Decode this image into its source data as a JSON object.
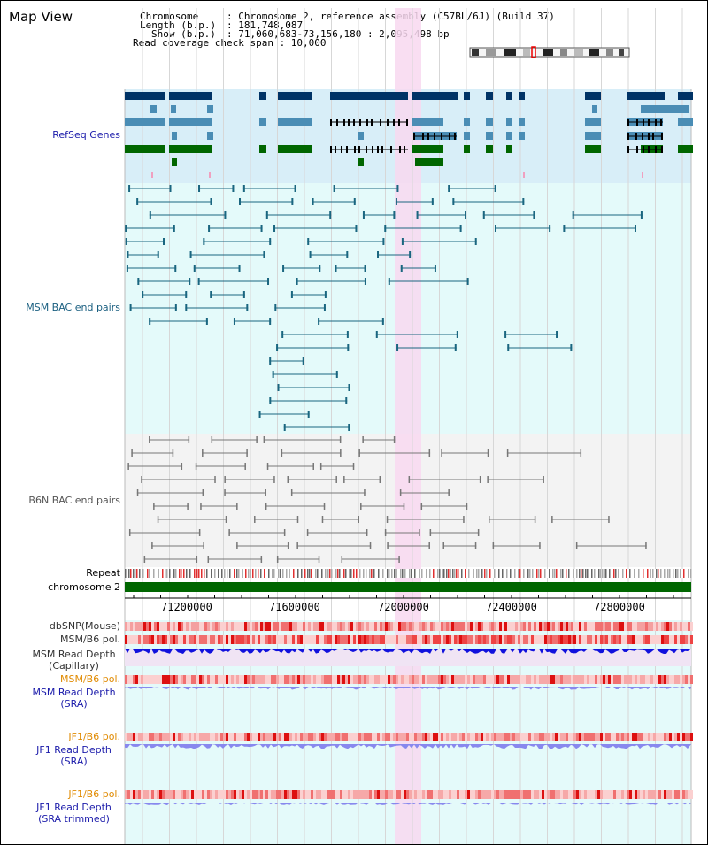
{
  "page": {
    "title": "Map View"
  },
  "header": {
    "chromosome_key": "Chromosome",
    "chromosome_val": ": Chromosome 2, reference assembly (C57BL/6J) (Build 37)",
    "length_key": "Length (b.p.)",
    "length_val": ": 181,748,087",
    "show_key": "Show (b.p.)",
    "show_val": ": 71,060,683-73,156,180 : 2,095,498 bp",
    "coverage_text": "Read coverage check span : 10,000"
  },
  "colors": {
    "refseq_bg": "#d8eef8",
    "bac_bg": "#e4fafa",
    "b6n_bg": "#f3f3f3",
    "highlight": "#f8d8f0",
    "gene_dark": "#003366",
    "gene_mid": "#4a8db5",
    "gene_green": "#006600",
    "msm_line": "#1a6680",
    "b6n_line": "#777777",
    "chromosome_bar": "#006600",
    "dbsnp": "#f4a0a0",
    "pol": "#ee4444",
    "depth_capillary": "#1111dd",
    "depth_sra": "#8888ee"
  },
  "tracks": {
    "refseq_label": "RefSeq Genes",
    "msm_bac_label": "MSM BAC end pairs",
    "b6n_bac_label": "B6N BAC end pairs",
    "repeat_label": "Repeat",
    "chromosome_label": "chromosome 2",
    "dbsnp_label": "dbSNP(Mouse)",
    "msm_b6_pol_label": "MSM/B6 pol.",
    "msm_depth_cap_line1": "MSM Read Depth",
    "msm_depth_cap_line2": "(Capillary)",
    "msm_b6_pol2_label": "MSM/B6 pol.",
    "msm_depth_sra_line1": "MSM Read Depth",
    "msm_depth_sra_line2": "(SRA)",
    "jf1_pol_label": "JF1/B6 pol.",
    "jf1_depth_line1": "JF1 Read Depth",
    "jf1_depth_line2": "(SRA)",
    "jf1_pol2_label": "JF1/B6 pol.",
    "jf1_trim_line1": "JF1 Read Depth",
    "jf1_trim_line2": "(SRA trimmed)"
  },
  "axis": {
    "ticks": [
      "71200000",
      "71600000",
      "72000000",
      "72400000",
      "72800000"
    ]
  }
}
